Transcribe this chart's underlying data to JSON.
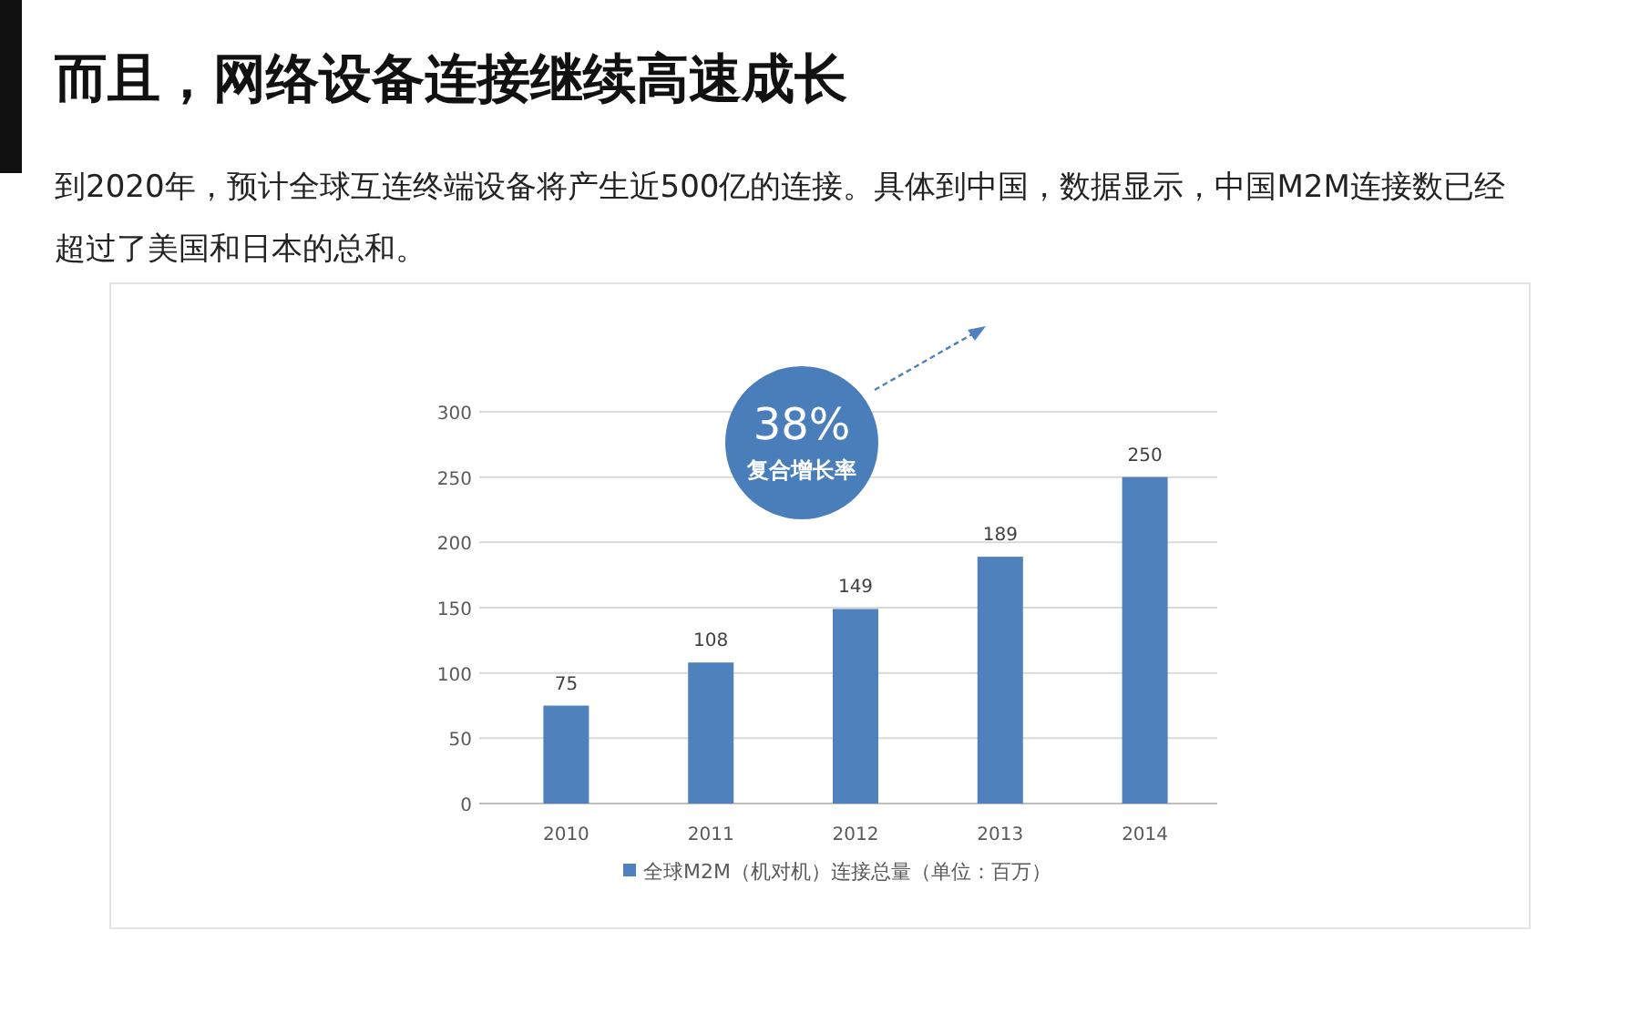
{
  "chart_data": {
    "type": "bar",
    "title": "而且，网络设备连接继续高速成长",
    "subtitle": "到2020年，预计全球互连终端设备将产生近500亿的连接。具体到中国，数据显示，中国M2M连接数已经超过了美国和日本的总和。",
    "categories": [
      "2010",
      "2011",
      "2012",
      "2013",
      "2014"
    ],
    "series": [
      {
        "name": "全球M2M（机对机）连接总量（单位：百万）",
        "color": "#4f81bd",
        "values": [
          75,
          108,
          149,
          189,
          250
        ]
      }
    ],
    "ylim": [
      0,
      300
    ],
    "yticks": [
      0,
      50,
      100,
      150,
      200,
      250,
      300
    ],
    "grid": "y",
    "data_labels": true,
    "legend": "bottom",
    "annotations": [
      "38%",
      "复合增长率"
    ]
  }
}
